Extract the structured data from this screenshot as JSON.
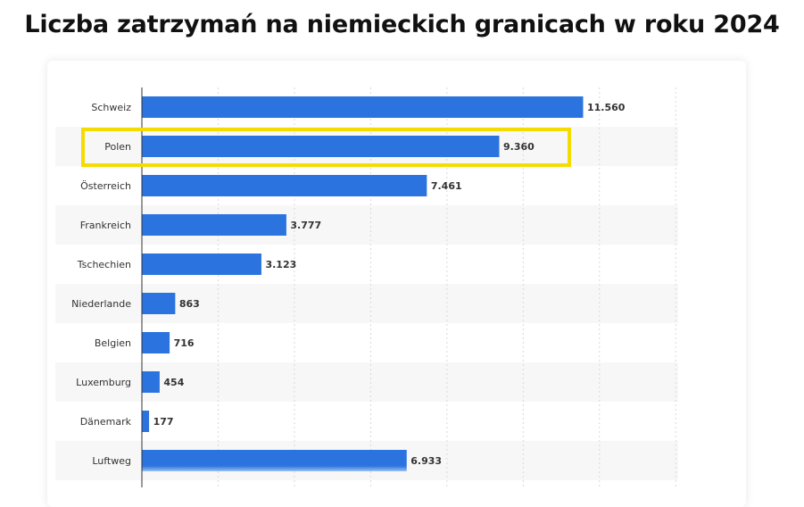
{
  "title": "Liczba zatrzymań na niemieckich granicach w roku 2024",
  "colors": {
    "bar": "#2b74e0",
    "highlight": "#f5dc00",
    "stripe": "#f7f7f7",
    "grid": "#d9d9d9"
  },
  "chart_data": {
    "type": "bar",
    "orientation": "horizontal",
    "categories": [
      "Schweiz",
      "Polen",
      "Österreich",
      "Frankreich",
      "Tschechien",
      "Niederlande",
      "Belgien",
      "Luxemburg",
      "Dänemark",
      "Luftweg"
    ],
    "values": [
      11560,
      9360,
      7461,
      3777,
      3123,
      863,
      716,
      454,
      177,
      6933
    ],
    "value_labels": [
      "11.560",
      "9.360",
      "7.461",
      "3.777",
      "3.123",
      "863",
      "716",
      "454",
      "177",
      "6.933"
    ],
    "highlighted_category": "Polen",
    "xlim": [
      0,
      14000
    ],
    "grid": true
  }
}
